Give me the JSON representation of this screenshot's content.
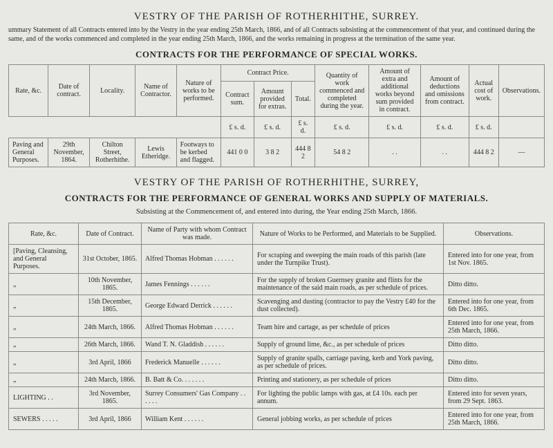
{
  "title1": "VESTRY OF THE PARISH OF ROTHERHITHE, SURREY.",
  "intro": "ummary Statement of all Contracts entered into by the Vestry in the year ending 25th March, 1866, and of all Contracts subsisting at the commencement of that year, and continued during the same, and of the works commenced and completed in the year ending 25th March, 1866, and the works remaining in progress at the termination of the same year.",
  "heading_special": "CONTRACTS FOR THE PERFORMANCE OF SPECIAL WORKS.",
  "t1": {
    "headers": {
      "rate": "Rate, &c.",
      "date": "Date of contract.",
      "locality": "Locality.",
      "contractor": "Name of Contractor.",
      "nature": "Nature of works to be performed.",
      "price": "Contract Price.",
      "price_sum": "Contract sum.",
      "price_extras": "Amount provided for extras.",
      "price_total": "Total.",
      "qty": "Quantity of work commenced and completed during the year.",
      "extra": "Amount of extra and additional works beyond sum provided in contract.",
      "deduct": "Amount of deductions and omissions from contract.",
      "cost": "Actual cost of work.",
      "obs": "Observations."
    },
    "lsd": "£  s.  d.",
    "row": {
      "rate": "Paving and General Purposes.",
      "date": "29th November, 1864.",
      "locality": "Chilton Street, Rotherhithe.",
      "contractor": "Lewis Etheridge.",
      "nature": "Footways to be kerbed and flagged.",
      "sum": "441  0  0",
      "extras": "3  8  2",
      "total": "444  8  2",
      "qty": "54  8  2",
      "extra": ". .",
      "deduct": ". .",
      "cost": "444  8  2",
      "obs": "—"
    }
  },
  "title2": "VESTRY OF THE PARISH OF ROTHERHITHE, SURREY,",
  "heading_general": "CONTRACTS FOR THE PERFORMANCE OF GENERAL WORKS AND SUPPLY OF MATERIALS.",
  "sub2": "Subsisting at the Commencement of, and entered into during, the Year ending 25th March, 1866.",
  "t2": {
    "headers": {
      "rate": "Rate, &c.",
      "date": "Date of Contract.",
      "party": "Name of Party with whom Contract was made.",
      "nature": "Nature of Works to be Performed, and Materials to be Supplied.",
      "obs": "Observations."
    },
    "rows": [
      {
        "rate": "[Paving, Cleansing, and General Purposes.",
        "date": "31st October, 1865.",
        "party": "Alfred Thomas Hobman",
        "nature": "For scraping and sweeping the main roads of this parish (late under the Turnpike Trust).",
        "obs": "Entered into for one year, from 1st Nov. 1865."
      },
      {
        "rate": "„",
        "date": "10th November, 1865.",
        "party": "James Fennings",
        "nature": "For the supply of broken Guernsey granite and flints for the maintenance of the said main roads, as per schedule of prices.",
        "obs": "Ditto        ditto."
      },
      {
        "rate": "„",
        "date": "15th December, 1865.",
        "party": "George Edward Derrick",
        "nature": "Scavenging and dusting (contractor to pay the Vestry £40 for the dust collected).",
        "obs": "Entered into for one year, from 6th Dec. 1865."
      },
      {
        "rate": "„",
        "date": "24th March, 1866.",
        "party": "Alfred Thomas Hobman",
        "nature": "Team hire and cartage, as per schedule of prices",
        "obs": "Entered into for one year, from 25th March, 1866."
      },
      {
        "rate": "„",
        "date": "26th March, 1866.",
        "party": "Wand T. N. Gladdish",
        "nature": "Supply of ground lime, &c., as per schedule of prices",
        "obs": "Ditto        ditto."
      },
      {
        "rate": "„",
        "date": "3rd April, 1866",
        "party": "Frederick Manuelle",
        "nature": "Supply of granite spalls, carriage paving, kerb and York paving, as per schedule of prices.",
        "obs": "Ditto        ditto."
      },
      {
        "rate": "„",
        "date": "24th March, 1866.",
        "party": "B. Batt & Co.",
        "nature": "Printing and stationery, as per schedule of prices",
        "obs": "Ditto        ditto."
      },
      {
        "rate": "LIGHTING  . .",
        "date": "3rd November, 1865.",
        "party": "Surrey Consumers' Gas Company",
        "nature": "For lighting the public lamps with gas, at £4 10s. each per annum.",
        "obs": "Entered into for seven years, from 29 Sept. 1863."
      },
      {
        "rate": "SEWERS . . . . .",
        "date": "3rd April, 1866",
        "party": "William Kent",
        "nature": "General jobbing works, as per schedule of prices",
        "obs": "Entered into for one year, from 25th March, 1866."
      }
    ]
  }
}
